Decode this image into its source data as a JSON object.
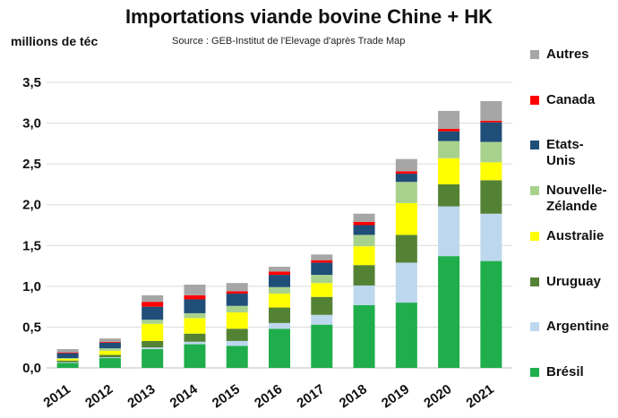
{
  "header": {
    "title": "Importations viande bovine Chine + HK",
    "subtitle": "Source : GEB-Institut de l'Elevage d'après Trade Map",
    "ylabel": "millions de téc"
  },
  "chart_data": {
    "type": "bar",
    "stacked": true,
    "title": "Importations viande bovine Chine + HK",
    "subtitle": "Source : GEB-Institut de l'Elevage d'après Trade Map",
    "ylabel": "millions de téc",
    "xlabel": "",
    "ylim": [
      0,
      3.5
    ],
    "yticks": [
      "0,0",
      "0,5",
      "1,0",
      "1,5",
      "2,0",
      "2,5",
      "3,0",
      "3,5"
    ],
    "grid": true,
    "legend_position": "right",
    "categories": [
      "2011",
      "2012",
      "2013",
      "2014",
      "2015",
      "2016",
      "2017",
      "2018",
      "2019",
      "2020",
      "2021"
    ],
    "series": [
      {
        "name": "Brésil",
        "color": "#1fae4b",
        "values": [
          0.06,
          0.12,
          0.23,
          0.29,
          0.27,
          0.48,
          0.53,
          0.77,
          0.8,
          1.37,
          1.31
        ]
      },
      {
        "name": "Argentine",
        "color": "#bdd7ee",
        "values": [
          0.01,
          0.01,
          0.02,
          0.03,
          0.06,
          0.07,
          0.12,
          0.24,
          0.49,
          0.61,
          0.58
        ]
      },
      {
        "name": "Uruguay",
        "color": "#548235",
        "values": [
          0.02,
          0.03,
          0.08,
          0.1,
          0.15,
          0.19,
          0.22,
          0.25,
          0.34,
          0.27,
          0.41
        ]
      },
      {
        "name": "Australie",
        "color": "#ffff00",
        "values": [
          0.02,
          0.05,
          0.21,
          0.19,
          0.2,
          0.17,
          0.17,
          0.23,
          0.39,
          0.32,
          0.22
        ]
      },
      {
        "name": "Nouvelle-Zélande",
        "color": "#a9d18e",
        "values": [
          0.01,
          0.03,
          0.05,
          0.06,
          0.08,
          0.08,
          0.1,
          0.14,
          0.26,
          0.21,
          0.25
        ]
      },
      {
        "name": "Etats-Unis",
        "color": "#1f4e79",
        "values": [
          0.06,
          0.07,
          0.16,
          0.17,
          0.15,
          0.15,
          0.15,
          0.12,
          0.1,
          0.12,
          0.24
        ]
      },
      {
        "name": "Canada",
        "color": "#ff0000",
        "values": [
          0.01,
          0.01,
          0.06,
          0.05,
          0.03,
          0.04,
          0.03,
          0.04,
          0.03,
          0.03,
          0.02
        ]
      },
      {
        "name": "Autres",
        "color": "#a6a6a6",
        "values": [
          0.04,
          0.04,
          0.08,
          0.13,
          0.1,
          0.06,
          0.07,
          0.1,
          0.15,
          0.22,
          0.24
        ]
      }
    ]
  }
}
